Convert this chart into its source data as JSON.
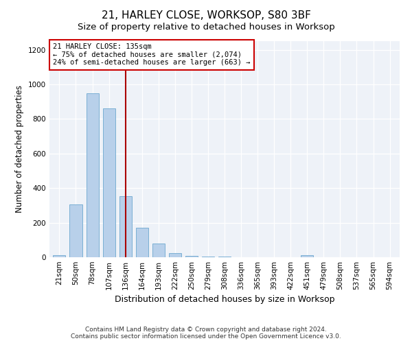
{
  "title1": "21, HARLEY CLOSE, WORKSOP, S80 3BF",
  "title2": "Size of property relative to detached houses in Worksop",
  "xlabel": "Distribution of detached houses by size in Worksop",
  "ylabel": "Number of detached properties",
  "categories": [
    "21sqm",
    "50sqm",
    "78sqm",
    "107sqm",
    "136sqm",
    "164sqm",
    "193sqm",
    "222sqm",
    "250sqm",
    "279sqm",
    "308sqm",
    "336sqm",
    "365sqm",
    "393sqm",
    "422sqm",
    "451sqm",
    "479sqm",
    "508sqm",
    "537sqm",
    "565sqm",
    "594sqm"
  ],
  "values": [
    10,
    305,
    950,
    860,
    355,
    170,
    78,
    25,
    8,
    2,
    2,
    1,
    1,
    0,
    0,
    10,
    0,
    0,
    0,
    0,
    0
  ],
  "bar_color": "#b8d0ea",
  "bar_edge_color": "#7aafd4",
  "vline_x": 4,
  "vline_color": "#aa0000",
  "annotation_text": "21 HARLEY CLOSE: 135sqm\n← 75% of detached houses are smaller (2,074)\n24% of semi-detached houses are larger (663) →",
  "annotation_box_color": "#ffffff",
  "annotation_box_edge": "#cc0000",
  "ylim": [
    0,
    1250
  ],
  "yticks": [
    0,
    200,
    400,
    600,
    800,
    1000,
    1200
  ],
  "footer": "Contains HM Land Registry data © Crown copyright and database right 2024.\nContains public sector information licensed under the Open Government Licence v3.0.",
  "bg_color": "#ffffff",
  "plot_bg_color": "#eef2f8",
  "grid_color": "#ffffff",
  "title1_fontsize": 11,
  "title2_fontsize": 9.5,
  "ylabel_fontsize": 8.5,
  "xlabel_fontsize": 9,
  "tick_fontsize": 7.5,
  "annot_fontsize": 7.5,
  "footer_fontsize": 6.5
}
